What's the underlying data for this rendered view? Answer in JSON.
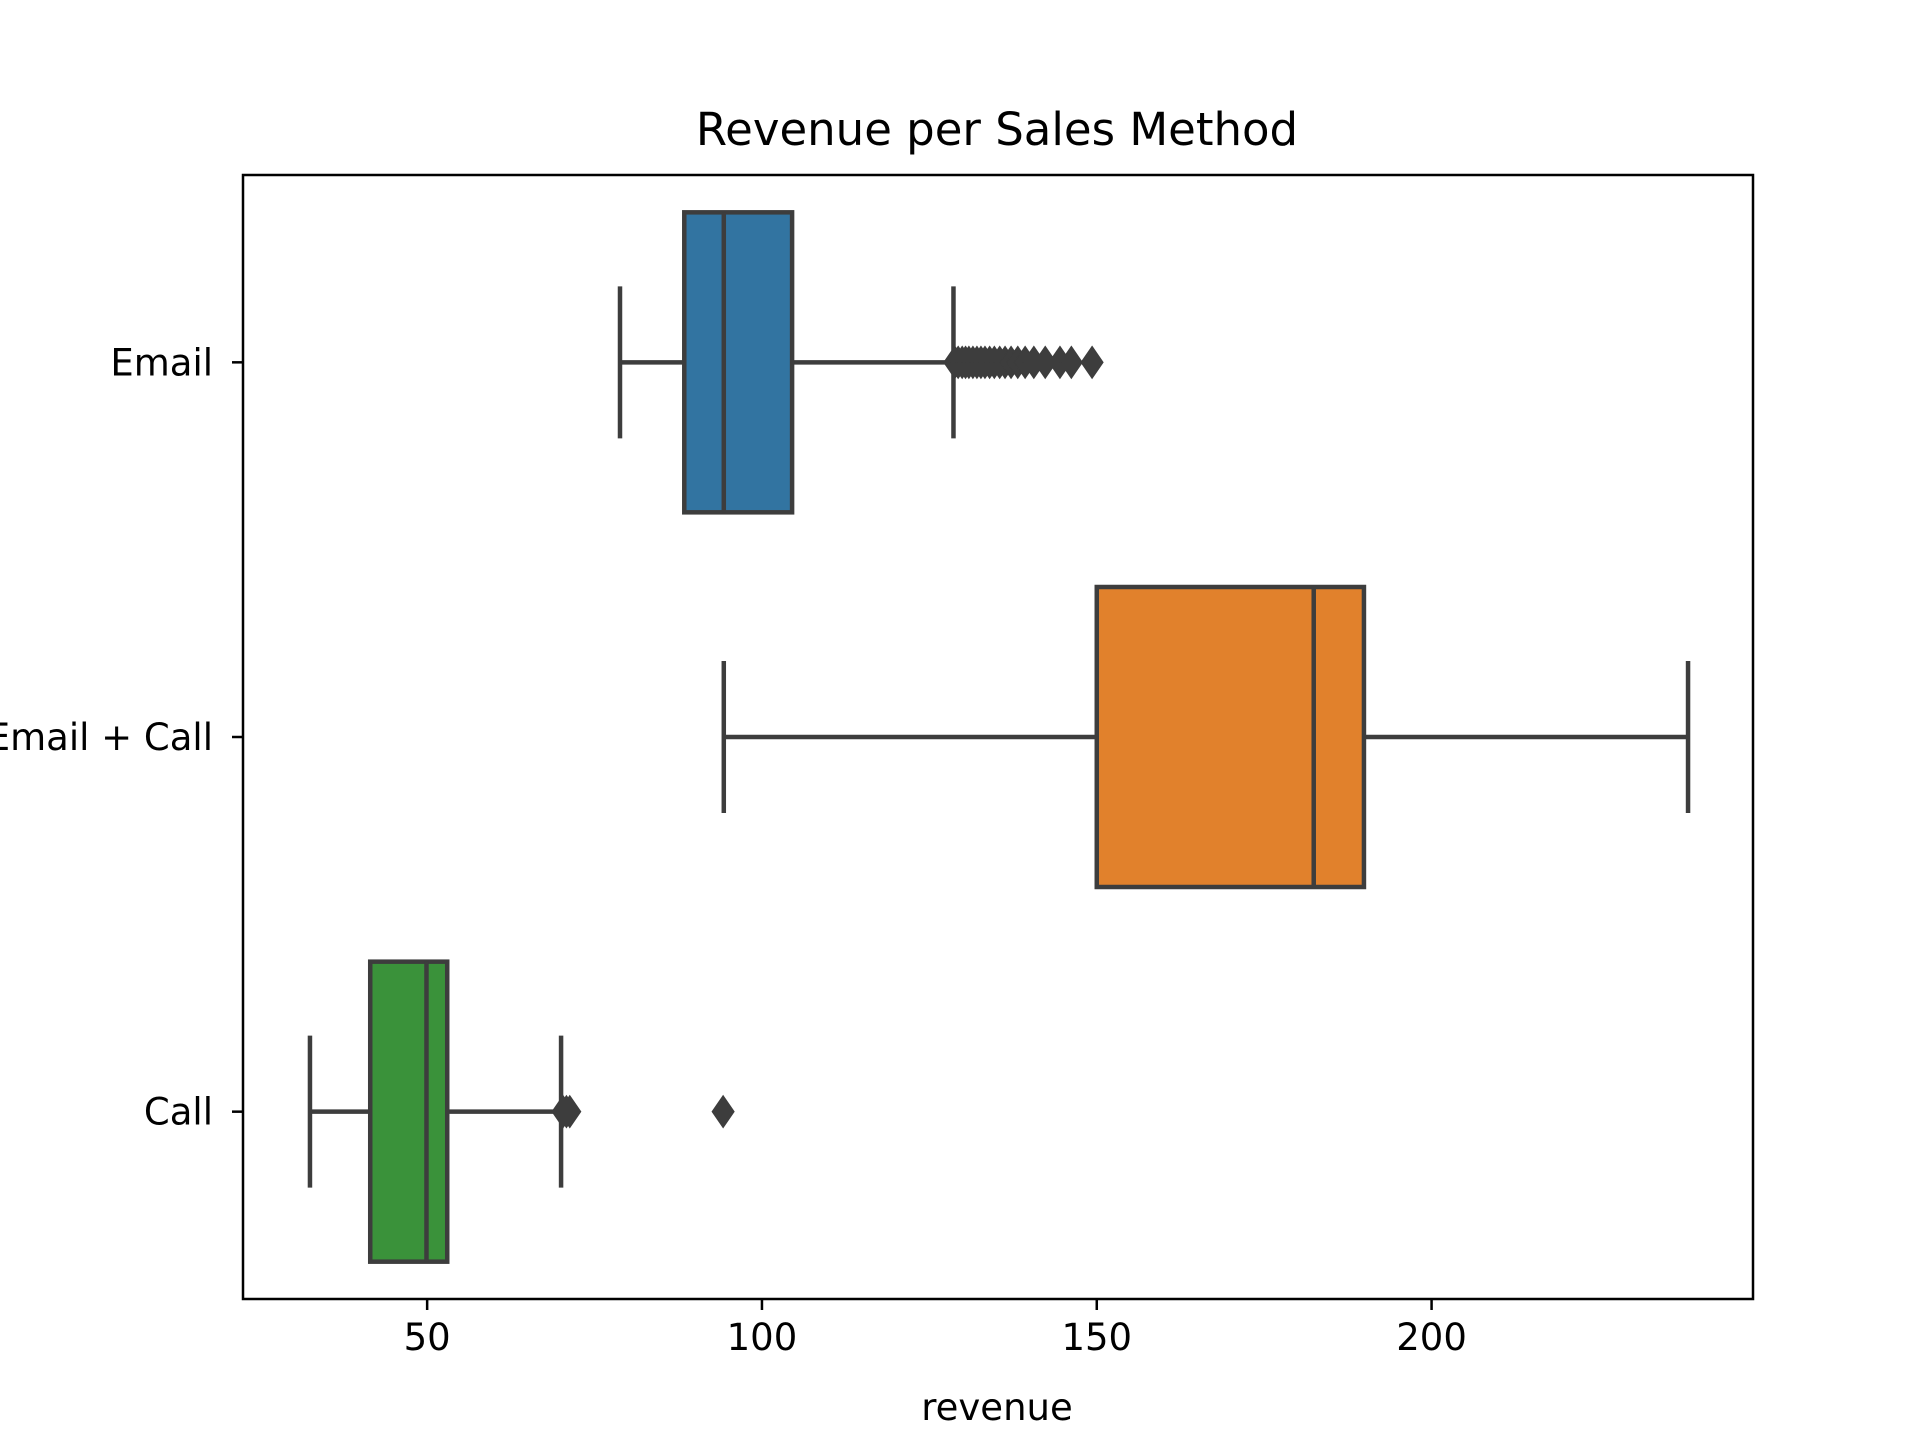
{
  "chart_data": {
    "type": "box",
    "orientation": "horizontal",
    "title": "Revenue per Sales Method",
    "xlabel": "revenue",
    "ylabel": "",
    "xlim": [
      22.5,
      248.0
    ],
    "xticks": [
      50,
      100,
      150,
      200
    ],
    "xtick_labels": [
      "50",
      "100",
      "150",
      "200"
    ],
    "grid": false,
    "legend": false,
    "categories": [
      "Email",
      "Email + Call",
      "Call"
    ],
    "series": [
      {
        "name": "Email",
        "color": "#3274a1",
        "whisker_low": 78.8,
        "q1": 88.4,
        "median": 94.3,
        "q3": 104.5,
        "whisker_high": 128.6,
        "outliers": [
          128.8,
          129.3,
          129.9,
          130.4,
          130.9,
          131.5,
          132.1,
          132.7,
          133.3,
          134.0,
          134.7,
          135.5,
          136.3,
          137.2,
          138.2,
          139.3,
          140.6,
          142.3,
          144.5,
          146.2,
          149.3
        ]
      },
      {
        "name": "Email + Call",
        "color": "#e1812c",
        "whisker_low": 94.3,
        "q1": 150.0,
        "median": 182.4,
        "q3": 189.9,
        "whisker_high": 238.3,
        "outliers": []
      },
      {
        "name": "Call",
        "color": "#3a923a",
        "whisker_low": 32.5,
        "q1": 41.5,
        "median": 49.9,
        "q3": 53.0,
        "whisker_high": 70.0,
        "outliers": [
          70.3,
          70.8,
          71.3,
          94.2
        ]
      }
    ]
  }
}
